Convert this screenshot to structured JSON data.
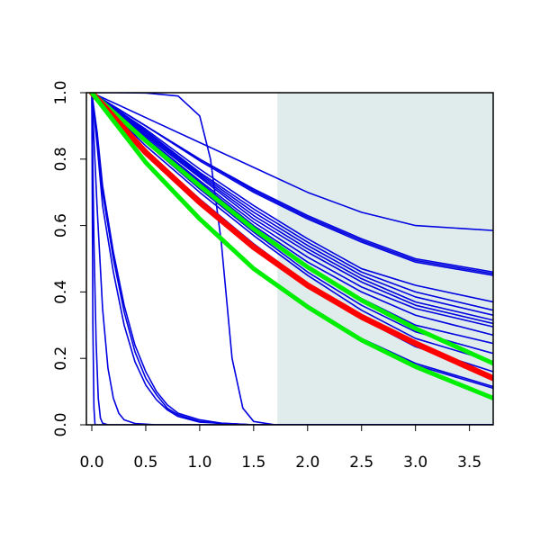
{
  "chart_data": {
    "type": "line",
    "title": "",
    "xlabel": "",
    "ylabel": "",
    "xlim": [
      -0.05,
      3.72
    ],
    "ylim": [
      0.0,
      1.0
    ],
    "grid": false,
    "legend": "none",
    "x_ticks": [
      0.0,
      0.5,
      1.0,
      1.5,
      2.0,
      2.5,
      3.0,
      3.5
    ],
    "x_tick_labels": [
      "0.0",
      "0.5",
      "1.0",
      "1.5",
      "2.0",
      "2.5",
      "3.0",
      "3.5"
    ],
    "y_ticks": [
      0.0,
      0.2,
      0.4,
      0.6,
      0.8,
      1.0
    ],
    "y_tick_labels": [
      "0.0",
      "0.2",
      "0.4",
      "0.6",
      "0.8",
      "1.0"
    ],
    "shaded_region": {
      "x_from": 1.72,
      "x_to": 3.72,
      "color": "#dfeceb"
    },
    "colors": {
      "blue": "#0000e0",
      "red": "#ff0000",
      "green": "#00ee00",
      "axis": "#000000"
    },
    "series": [
      {
        "color": "blue",
        "width": 1.6,
        "points": [
          [
            0,
            1
          ],
          [
            0.5,
            0.925
          ],
          [
            1.0,
            0.85
          ],
          [
            1.5,
            0.775
          ],
          [
            2.0,
            0.7
          ],
          [
            2.5,
            0.64
          ],
          [
            3.0,
            0.6
          ],
          [
            3.72,
            0.585
          ]
        ]
      },
      {
        "color": "blue",
        "width": 1.6,
        "points": [
          [
            0,
            1
          ],
          [
            0.5,
            0.9
          ],
          [
            1.0,
            0.8
          ],
          [
            1.5,
            0.71
          ],
          [
            2.0,
            0.63
          ],
          [
            2.5,
            0.56
          ],
          [
            3.0,
            0.5
          ],
          [
            3.72,
            0.46
          ]
        ]
      },
      {
        "color": "blue",
        "width": 1.6,
        "points": [
          [
            0,
            1
          ],
          [
            0.5,
            0.9
          ],
          [
            1.0,
            0.8
          ],
          [
            1.5,
            0.705
          ],
          [
            2.0,
            0.625
          ],
          [
            2.5,
            0.555
          ],
          [
            3.0,
            0.495
          ],
          [
            3.72,
            0.455
          ]
        ]
      },
      {
        "color": "blue",
        "width": 1.6,
        "points": [
          [
            0,
            1
          ],
          [
            0.5,
            0.9
          ],
          [
            1.0,
            0.795
          ],
          [
            1.5,
            0.7
          ],
          [
            2.0,
            0.62
          ],
          [
            2.5,
            0.55
          ],
          [
            3.0,
            0.49
          ],
          [
            3.72,
            0.45
          ]
        ]
      },
      {
        "color": "blue",
        "width": 1.6,
        "points": [
          [
            0,
            1
          ],
          [
            0.5,
            0.89
          ],
          [
            1.0,
            0.77
          ],
          [
            1.5,
            0.66
          ],
          [
            2.0,
            0.56
          ],
          [
            2.5,
            0.47
          ],
          [
            3.0,
            0.42
          ],
          [
            3.72,
            0.37
          ]
        ]
      },
      {
        "color": "blue",
        "width": 1.6,
        "points": [
          [
            0,
            1
          ],
          [
            0.5,
            0.885
          ],
          [
            1.0,
            0.76
          ],
          [
            1.5,
            0.65
          ],
          [
            2.0,
            0.55
          ],
          [
            2.5,
            0.46
          ],
          [
            3.0,
            0.4
          ],
          [
            3.72,
            0.345
          ]
        ]
      },
      {
        "color": "blue",
        "width": 1.6,
        "points": [
          [
            0,
            1
          ],
          [
            0.5,
            0.88
          ],
          [
            1.0,
            0.755
          ],
          [
            1.5,
            0.64
          ],
          [
            2.0,
            0.54
          ],
          [
            2.5,
            0.45
          ],
          [
            3.0,
            0.385
          ],
          [
            3.72,
            0.33
          ]
        ]
      },
      {
        "color": "blue",
        "width": 1.6,
        "points": [
          [
            0,
            1
          ],
          [
            0.5,
            0.875
          ],
          [
            1.0,
            0.75
          ],
          [
            1.5,
            0.63
          ],
          [
            2.0,
            0.53
          ],
          [
            2.5,
            0.44
          ],
          [
            3.0,
            0.37
          ],
          [
            3.72,
            0.315
          ]
        ]
      },
      {
        "color": "blue",
        "width": 1.6,
        "points": [
          [
            0,
            1
          ],
          [
            0.5,
            0.87
          ],
          [
            1.0,
            0.745
          ],
          [
            1.5,
            0.62
          ],
          [
            2.0,
            0.52
          ],
          [
            2.5,
            0.43
          ],
          [
            3.0,
            0.36
          ],
          [
            3.72,
            0.305
          ]
        ]
      },
      {
        "color": "blue",
        "width": 1.6,
        "points": [
          [
            0,
            1
          ],
          [
            0.5,
            0.865
          ],
          [
            1.0,
            0.735
          ],
          [
            1.5,
            0.61
          ],
          [
            2.0,
            0.505
          ],
          [
            2.5,
            0.415
          ],
          [
            3.0,
            0.35
          ],
          [
            3.72,
            0.295
          ]
        ]
      },
      {
        "color": "blue",
        "width": 1.6,
        "points": [
          [
            0,
            1
          ],
          [
            0.5,
            0.86
          ],
          [
            1.0,
            0.73
          ],
          [
            1.5,
            0.6
          ],
          [
            2.0,
            0.49
          ],
          [
            2.5,
            0.4
          ],
          [
            3.0,
            0.33
          ],
          [
            3.72,
            0.27
          ]
        ]
      },
      {
        "color": "blue",
        "width": 1.6,
        "points": [
          [
            0,
            1
          ],
          [
            0.5,
            0.855
          ],
          [
            1.0,
            0.72
          ],
          [
            1.5,
            0.59
          ],
          [
            2.0,
            0.475
          ],
          [
            2.5,
            0.38
          ],
          [
            3.0,
            0.3
          ],
          [
            3.72,
            0.245
          ]
        ]
      },
      {
        "color": "blue",
        "width": 1.6,
        "points": [
          [
            0,
            1
          ],
          [
            0.5,
            0.85
          ],
          [
            1.0,
            0.71
          ],
          [
            1.5,
            0.58
          ],
          [
            2.0,
            0.46
          ],
          [
            2.5,
            0.36
          ],
          [
            3.0,
            0.28
          ],
          [
            3.72,
            0.215
          ]
        ]
      },
      {
        "color": "blue",
        "width": 1.6,
        "points": [
          [
            0,
            1
          ],
          [
            0.5,
            0.84
          ],
          [
            1.0,
            0.7
          ],
          [
            1.5,
            0.57
          ],
          [
            2.0,
            0.45
          ],
          [
            2.5,
            0.345
          ],
          [
            3.0,
            0.26
          ],
          [
            3.72,
            0.19
          ]
        ]
      },
      {
        "color": "blue",
        "width": 1.6,
        "points": [
          [
            0,
            1
          ],
          [
            0.5,
            0.825
          ],
          [
            1.0,
            0.68
          ],
          [
            1.5,
            0.545
          ],
          [
            2.0,
            0.425
          ],
          [
            2.5,
            0.32
          ],
          [
            3.0,
            0.235
          ],
          [
            3.72,
            0.16
          ]
        ]
      },
      {
        "color": "blue",
        "width": 1.6,
        "points": [
          [
            0,
            1
          ],
          [
            0.5,
            0.795
          ],
          [
            1.0,
            0.625
          ],
          [
            1.5,
            0.475
          ],
          [
            2.0,
            0.36
          ],
          [
            2.5,
            0.26
          ],
          [
            3.0,
            0.185
          ],
          [
            3.72,
            0.115
          ]
        ]
      },
      {
        "color": "blue",
        "width": 1.6,
        "points": [
          [
            0,
            1
          ],
          [
            0.5,
            0.79
          ],
          [
            1.0,
            0.62
          ],
          [
            1.5,
            0.47
          ],
          [
            2.0,
            0.355
          ],
          [
            2.5,
            0.255
          ],
          [
            3.0,
            0.18
          ],
          [
            3.72,
            0.11
          ]
        ]
      },
      {
        "color": "blue",
        "width": 1.6,
        "points": [
          [
            0,
            1
          ],
          [
            0.2,
            1
          ],
          [
            0.5,
            0.999
          ],
          [
            0.8,
            0.99
          ],
          [
            1.0,
            0.93
          ],
          [
            1.1,
            0.8
          ],
          [
            1.2,
            0.55
          ],
          [
            1.3,
            0.2
          ],
          [
            1.4,
            0.05
          ],
          [
            1.5,
            0.01
          ],
          [
            1.7,
            0
          ],
          [
            3.72,
            0
          ]
        ]
      },
      {
        "color": "blue",
        "width": 1.6,
        "points": [
          [
            0,
            1
          ],
          [
            0.05,
            0.88
          ],
          [
            0.1,
            0.72
          ],
          [
            0.2,
            0.52
          ],
          [
            0.3,
            0.36
          ],
          [
            0.4,
            0.24
          ],
          [
            0.5,
            0.16
          ],
          [
            0.6,
            0.1
          ],
          [
            0.7,
            0.06
          ],
          [
            0.8,
            0.035
          ],
          [
            1.0,
            0.015
          ],
          [
            1.2,
            0.005
          ],
          [
            1.5,
            0
          ],
          [
            3.72,
            0
          ]
        ]
      },
      {
        "color": "blue",
        "width": 1.6,
        "points": [
          [
            0,
            1
          ],
          [
            0.05,
            0.86
          ],
          [
            0.1,
            0.7
          ],
          [
            0.2,
            0.5
          ],
          [
            0.3,
            0.34
          ],
          [
            0.4,
            0.22
          ],
          [
            0.5,
            0.14
          ],
          [
            0.6,
            0.09
          ],
          [
            0.7,
            0.05
          ],
          [
            0.8,
            0.03
          ],
          [
            1.0,
            0.01
          ],
          [
            1.2,
            0.004
          ],
          [
            1.5,
            0
          ],
          [
            3.72,
            0
          ]
        ]
      },
      {
        "color": "blue",
        "width": 1.6,
        "points": [
          [
            0,
            1
          ],
          [
            0.05,
            0.84
          ],
          [
            0.1,
            0.66
          ],
          [
            0.2,
            0.46
          ],
          [
            0.3,
            0.3
          ],
          [
            0.4,
            0.19
          ],
          [
            0.5,
            0.12
          ],
          [
            0.6,
            0.075
          ],
          [
            0.7,
            0.045
          ],
          [
            0.8,
            0.025
          ],
          [
            1.0,
            0.008
          ],
          [
            1.5,
            0
          ],
          [
            3.72,
            0
          ]
        ]
      },
      {
        "color": "blue",
        "width": 1.6,
        "points": [
          [
            0,
            1
          ],
          [
            0.05,
            0.65
          ],
          [
            0.1,
            0.35
          ],
          [
            0.15,
            0.17
          ],
          [
            0.2,
            0.08
          ],
          [
            0.25,
            0.035
          ],
          [
            0.3,
            0.015
          ],
          [
            0.4,
            0.004
          ],
          [
            0.6,
            0
          ],
          [
            3.72,
            0
          ]
        ]
      },
      {
        "color": "blue",
        "width": 1.6,
        "points": [
          [
            0,
            1
          ],
          [
            0.02,
            0.55
          ],
          [
            0.04,
            0.25
          ],
          [
            0.06,
            0.08
          ],
          [
            0.08,
            0.02
          ],
          [
            0.1,
            0.005
          ],
          [
            0.15,
            0
          ],
          [
            3.72,
            0
          ]
        ]
      },
      {
        "color": "blue",
        "width": 1.6,
        "points": [
          [
            0,
            1
          ],
          [
            0.01,
            0.3
          ],
          [
            0.02,
            0.05
          ],
          [
            0.03,
            0
          ],
          [
            3.72,
            0
          ]
        ]
      },
      {
        "color": "green",
        "width": 5,
        "points": [
          [
            0,
            1
          ],
          [
            0.5,
            0.855
          ],
          [
            1.0,
            0.72
          ],
          [
            1.5,
            0.59
          ],
          [
            2.0,
            0.475
          ],
          [
            2.5,
            0.375
          ],
          [
            3.0,
            0.29
          ],
          [
            3.72,
            0.185
          ]
        ]
      },
      {
        "color": "red",
        "width": 6.5,
        "points": [
          [
            0,
            1
          ],
          [
            0.5,
            0.82
          ],
          [
            1.0,
            0.67
          ],
          [
            1.5,
            0.535
          ],
          [
            2.0,
            0.42
          ],
          [
            2.5,
            0.325
          ],
          [
            3.0,
            0.245
          ],
          [
            3.72,
            0.14
          ]
        ]
      },
      {
        "color": "green",
        "width": 5,
        "points": [
          [
            0,
            1
          ],
          [
            0.5,
            0.79
          ],
          [
            1.0,
            0.62
          ],
          [
            1.5,
            0.47
          ],
          [
            2.0,
            0.355
          ],
          [
            2.5,
            0.255
          ],
          [
            3.0,
            0.175
          ],
          [
            3.72,
            0.08
          ]
        ]
      }
    ]
  }
}
